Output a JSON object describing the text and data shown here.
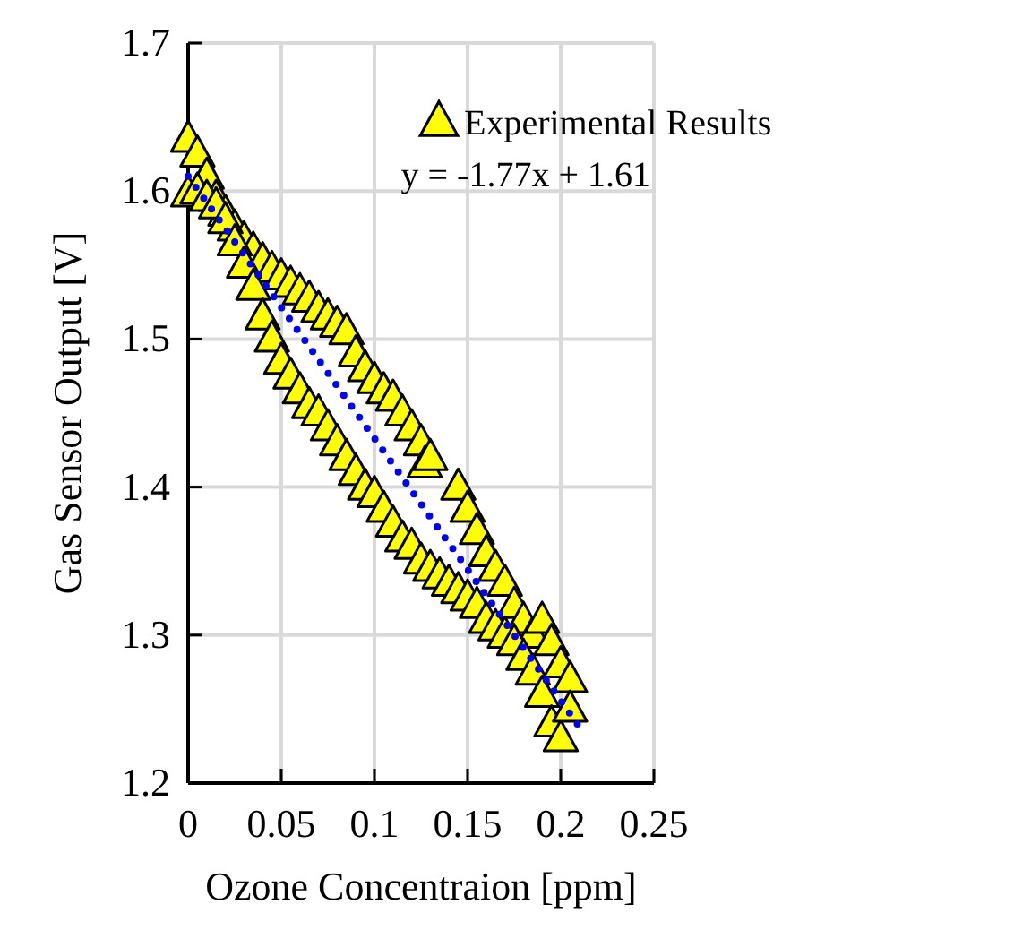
{
  "chart_data": {
    "type": "scatter",
    "xlabel": "Ozone Concentraion [ppm]",
    "ylabel": "Gas Sensor Output [V]",
    "xlim": [
      0,
      0.25
    ],
    "xticks": [
      0,
      0.05,
      0.1,
      0.15,
      0.2,
      0.25
    ],
    "ylim": [
      1.2,
      1.7
    ],
    "yticks": [
      1.2,
      1.3,
      1.4,
      1.5,
      1.6,
      1.7
    ],
    "grid": true,
    "legend": "top right",
    "annotations": [
      "y = -1.77x + 1.61"
    ],
    "series": [
      {
        "name": "Experimental Results",
        "color": "#ffff00",
        "marker": "triangle",
        "x": [
          0,
          0.005,
          0.01,
          0.015,
          0.02,
          0.025,
          0.03,
          0.035,
          0.04,
          0.045,
          0.05,
          0.055,
          0.06,
          0.065,
          0.07,
          0.075,
          0.08,
          0.085,
          0.09,
          0.095,
          0.1,
          0.105,
          0.11,
          0.115,
          0.12,
          0.125,
          0.127,
          0.13,
          0.145,
          0.15,
          0.155,
          0.16,
          0.165,
          0.17,
          0.175,
          0.18,
          0.185,
          0.19,
          0.195,
          0.2,
          0.205,
          0,
          0.005,
          0.01,
          0.015,
          0.02,
          0.025,
          0.03,
          0.035,
          0.04,
          0.045,
          0.05,
          0.055,
          0.06,
          0.065,
          0.07,
          0.075,
          0.08,
          0.085,
          0.09,
          0.095,
          0.1,
          0.105,
          0.11,
          0.115,
          0.12,
          0.125,
          0.13,
          0.135,
          0.14,
          0.145,
          0.15,
          0.155,
          0.16,
          0.165,
          0.17,
          0.175,
          0.18,
          0.185,
          0.19,
          0.195,
          0.2,
          0.205
        ],
        "values": [
          1.635,
          1.625,
          1.61,
          1.595,
          1.585,
          1.575,
          1.567,
          1.56,
          1.553,
          1.547,
          1.542,
          1.537,
          1.532,
          1.527,
          1.52,
          1.515,
          1.51,
          1.505,
          1.49,
          1.48,
          1.472,
          1.465,
          1.46,
          1.45,
          1.44,
          1.43,
          1.415,
          1.42,
          1.4,
          1.385,
          1.37,
          1.355,
          1.345,
          1.335,
          1.32,
          1.31,
          1.3,
          1.31,
          1.295,
          1.28,
          1.27,
          1.598,
          1.6,
          1.595,
          1.59,
          1.58,
          1.565,
          1.55,
          1.535,
          1.515,
          1.5,
          1.485,
          1.475,
          1.465,
          1.455,
          1.45,
          1.44,
          1.43,
          1.42,
          1.41,
          1.4,
          1.395,
          1.385,
          1.375,
          1.365,
          1.36,
          1.35,
          1.345,
          1.34,
          1.335,
          1.33,
          1.325,
          1.32,
          1.31,
          1.305,
          1.3,
          1.295,
          1.285,
          1.275,
          1.26,
          1.24,
          1.23,
          1.25
        ]
      },
      {
        "type": "line",
        "color": "#0000ff",
        "line_style": "dotted",
        "marker": "none",
        "x": [
          0,
          0.21
        ],
        "values": [
          1.61,
          1.238
        ]
      }
    ]
  }
}
